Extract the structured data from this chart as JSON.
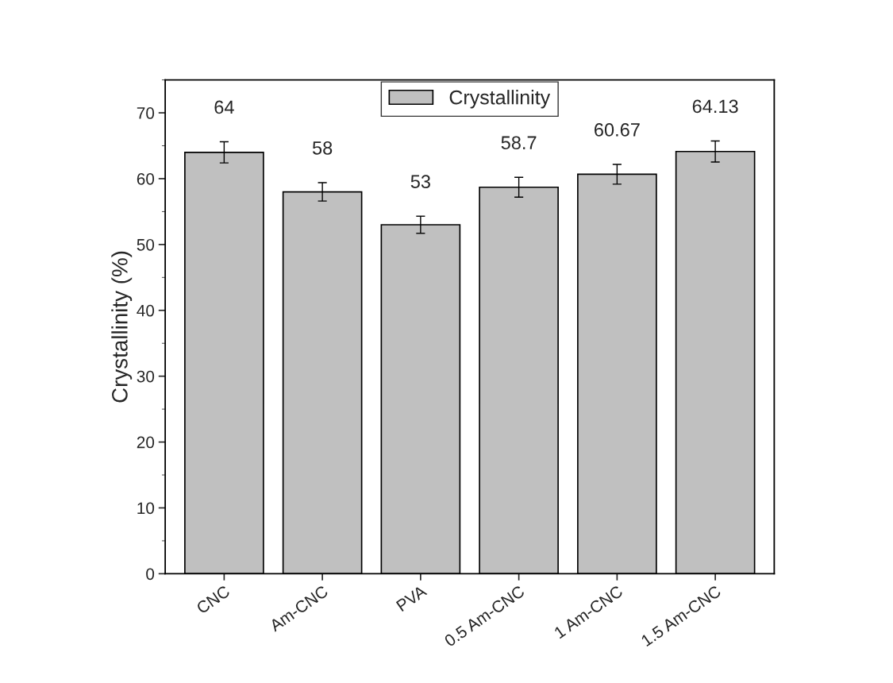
{
  "chart_data": {
    "type": "bar",
    "ylabel": "Crystallinity (%)",
    "categories": [
      "CNC",
      "Am-CNC",
      "PVA",
      "0.5 Am-CNC",
      "1 Am-CNC",
      "1.5 Am-CNC"
    ],
    "series": [
      {
        "name": "Crystallinity",
        "color": "#c0c0c0",
        "values": [
          64,
          58,
          53,
          58.7,
          60.67,
          64.13
        ],
        "errors": [
          1.6,
          1.4,
          1.3,
          1.5,
          1.5,
          1.6
        ]
      }
    ],
    "ylim": [
      0,
      75
    ],
    "yticks": [
      0,
      10,
      20,
      30,
      40,
      50,
      60,
      70
    ],
    "data_labels": true,
    "legend": "top",
    "grid": false
  }
}
